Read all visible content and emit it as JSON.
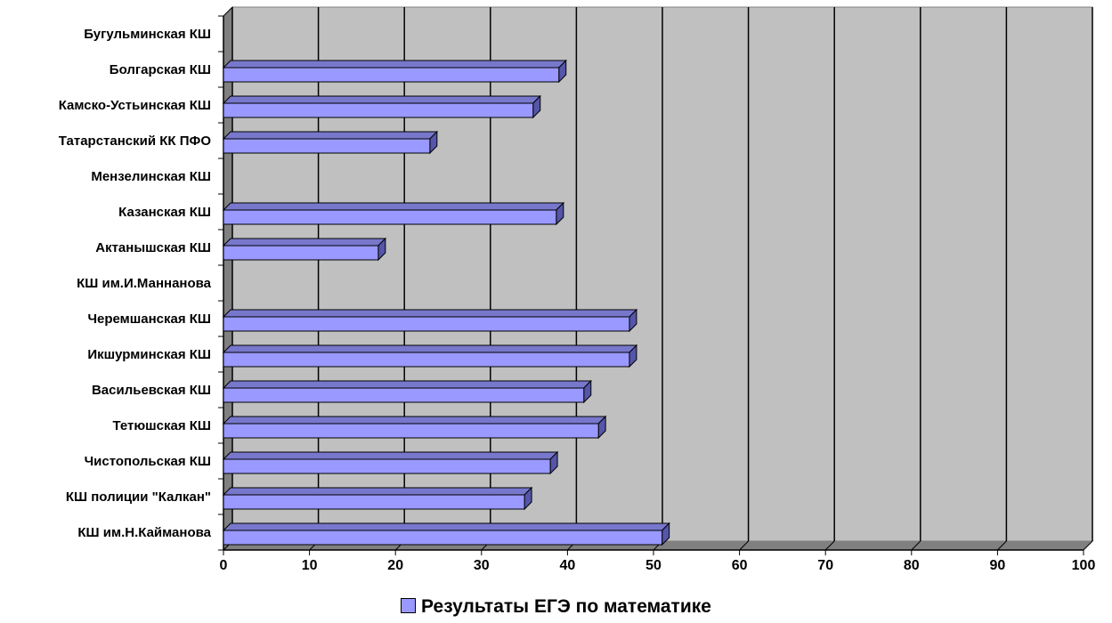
{
  "chart_data": {
    "type": "bar",
    "orientation": "horizontal",
    "categories": [
      "Бугульминская КШ",
      "Болгарская КШ",
      "Камско-Устьинская КШ",
      "Татарстанский КК ПФО",
      "Мензелинская КШ",
      "Казанская КШ",
      "Актанышская КШ",
      "КШ им.И.Маннанова",
      "Черемшанская КШ",
      "Икшурминская КШ",
      "Васильевская КШ",
      "Тетюшская КШ",
      "Чистопольская КШ",
      "КШ полиции \"Калкан\"",
      "КШ им.Н.Кайманова"
    ],
    "series": [
      {
        "name": "Результаты ЕГЭ по математике",
        "values": [
          0,
          39,
          36,
          24,
          0,
          38.7,
          18,
          0,
          47.2,
          47.2,
          41.9,
          43.6,
          38,
          35,
          51
        ],
        "color": "#9999ff"
      }
    ],
    "xlim": [
      0,
      100
    ],
    "xticks": [
      "0",
      "10",
      "20",
      "30",
      "40",
      "50",
      "60",
      "70",
      "80",
      "90",
      "100"
    ],
    "grid": true,
    "plot_background": "#c0c0c0",
    "legend_position": "bottom"
  }
}
